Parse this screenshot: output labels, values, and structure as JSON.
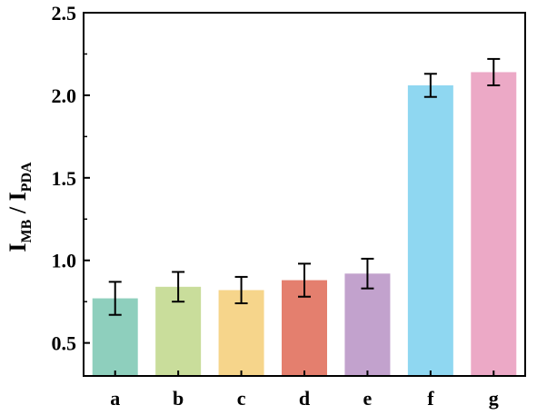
{
  "chart_data": {
    "type": "bar",
    "categories": [
      "a",
      "b",
      "c",
      "d",
      "e",
      "f",
      "g"
    ],
    "values": [
      0.77,
      0.84,
      0.82,
      0.88,
      0.92,
      2.06,
      2.14
    ],
    "errors": [
      0.1,
      0.09,
      0.08,
      0.1,
      0.09,
      0.07,
      0.08
    ],
    "colors": [
      "#8ecfbd",
      "#c9dd9b",
      "#f6d58b",
      "#e47f6e",
      "#c2a2cd",
      "#8fd7f1",
      "#eca9c6"
    ],
    "ylabel": {
      "main": "I",
      "sub1": "MB",
      "sep": " / I",
      "sub2": "PDA"
    },
    "ylim": [
      0.3,
      2.5
    ],
    "yticks": [
      "0.5",
      "1.0",
      "1.5",
      "2.0",
      "2.5"
    ],
    "ytick_values": [
      0.5,
      1.0,
      1.5,
      2.0,
      2.5
    ],
    "grid": false
  }
}
